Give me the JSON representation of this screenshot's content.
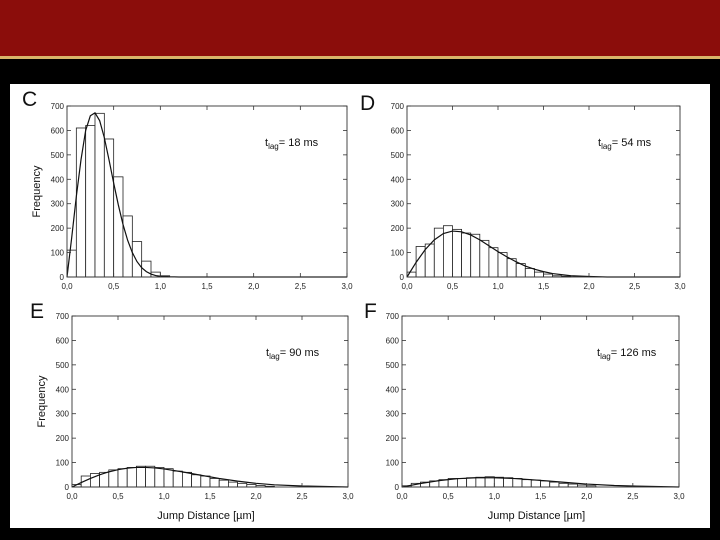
{
  "slide": {
    "header_color": "#8b0d0b",
    "rule_color": "#d9b46a",
    "background_color": "#000000"
  },
  "chart_data": [
    {
      "panel": "C",
      "type": "bar",
      "annotation": {
        "base": "t",
        "sub": "lag",
        "rest": "= 18 ms"
      },
      "xlabel": "",
      "ylabel": "Frequency",
      "xlim": [
        0,
        3.0
      ],
      "ylim": [
        0,
        700
      ],
      "xticks": [
        "0,0",
        "0,5",
        "1,0",
        "1,5",
        "2,0",
        "2,5",
        "3,0"
      ],
      "yticks": [
        "0",
        "100",
        "200",
        "300",
        "400",
        "500",
        "600",
        "700"
      ],
      "bin_width": 0.1,
      "bins": [
        0.0,
        0.1,
        0.2,
        0.3,
        0.4,
        0.5,
        0.6,
        0.7,
        0.8,
        0.9,
        1.0
      ],
      "values": [
        110,
        610,
        620,
        670,
        565,
        410,
        250,
        145,
        65,
        20,
        5
      ],
      "fit": {
        "x": [
          0.0,
          0.05,
          0.1,
          0.15,
          0.2,
          0.25,
          0.3,
          0.35,
          0.4,
          0.45,
          0.5,
          0.55,
          0.6,
          0.65,
          0.7,
          0.75,
          0.8,
          0.85,
          0.9,
          0.95,
          1.0,
          1.1,
          1.2,
          1.4,
          1.6,
          3.0
        ],
        "y": [
          0,
          160,
          330,
          480,
          600,
          660,
          672,
          640,
          570,
          480,
          385,
          295,
          215,
          150,
          100,
          63,
          38,
          22,
          12,
          6,
          3,
          1,
          0,
          0,
          0,
          0
        ]
      }
    },
    {
      "panel": "D",
      "type": "bar",
      "annotation": {
        "base": "t",
        "sub": "lag",
        "rest": "= 54 ms"
      },
      "xlabel": "",
      "ylabel": "",
      "xlim": [
        0,
        3.0
      ],
      "ylim": [
        0,
        700
      ],
      "xticks": [
        "0,0",
        "0,5",
        "1,0",
        "1,5",
        "2,0",
        "2,5",
        "3,0"
      ],
      "yticks": [
        "0",
        "100",
        "200",
        "300",
        "400",
        "500",
        "600",
        "700"
      ],
      "bin_width": 0.1,
      "bins": [
        0.0,
        0.1,
        0.2,
        0.3,
        0.4,
        0.5,
        0.6,
        0.7,
        0.8,
        0.9,
        1.0,
        1.1,
        1.2,
        1.3,
        1.4,
        1.5,
        1.6,
        1.7
      ],
      "values": [
        20,
        125,
        135,
        200,
        210,
        195,
        180,
        175,
        150,
        120,
        100,
        75,
        55,
        35,
        20,
        12,
        5,
        3
      ],
      "fit": {
        "x": [
          0.0,
          0.1,
          0.2,
          0.3,
          0.4,
          0.5,
          0.6,
          0.7,
          0.8,
          0.9,
          1.0,
          1.1,
          1.2,
          1.3,
          1.4,
          1.5,
          1.6,
          1.8,
          2.0,
          2.2,
          3.0
        ],
        "y": [
          0,
          60,
          112,
          152,
          178,
          188,
          185,
          172,
          152,
          128,
          104,
          82,
          62,
          45,
          32,
          22,
          14,
          5,
          2,
          0,
          0
        ]
      }
    },
    {
      "panel": "E",
      "type": "bar",
      "annotation": {
        "base": "t",
        "sub": "lag",
        "rest": "= 90 ms"
      },
      "xlabel": "Jump Distance [µm]",
      "ylabel": "Frequency",
      "xlim": [
        0,
        3.0
      ],
      "ylim": [
        0,
        700
      ],
      "xticks": [
        "0,0",
        "0,5",
        "1,0",
        "1,5",
        "2,0",
        "2,5",
        "3,0"
      ],
      "yticks": [
        "0",
        "100",
        "200",
        "300",
        "400",
        "500",
        "600",
        "700"
      ],
      "bin_width": 0.1,
      "bins": [
        0.0,
        0.1,
        0.2,
        0.3,
        0.4,
        0.5,
        0.6,
        0.7,
        0.8,
        0.9,
        1.0,
        1.1,
        1.2,
        1.3,
        1.4,
        1.5,
        1.6,
        1.7,
        1.8,
        1.9,
        2.0,
        2.1
      ],
      "values": [
        10,
        45,
        55,
        60,
        70,
        75,
        80,
        85,
        85,
        80,
        75,
        65,
        60,
        50,
        45,
        35,
        28,
        20,
        15,
        10,
        6,
        3
      ],
      "fit": {
        "x": [
          0.0,
          0.1,
          0.2,
          0.3,
          0.4,
          0.5,
          0.6,
          0.7,
          0.8,
          0.9,
          1.0,
          1.2,
          1.4,
          1.6,
          1.8,
          2.0,
          2.2,
          2.5,
          3.0
        ],
        "y": [
          0,
          18,
          35,
          50,
          62,
          71,
          77,
          80,
          80,
          78,
          74,
          62,
          48,
          35,
          24,
          15,
          9,
          4,
          0
        ]
      }
    },
    {
      "panel": "F",
      "type": "bar",
      "annotation": {
        "base": "t",
        "sub": "lag",
        "rest": "= 126 ms"
      },
      "xlabel": "Jump Distance [µm]",
      "ylabel": "",
      "xlim": [
        0,
        3.0
      ],
      "ylim": [
        0,
        700
      ],
      "xticks": [
        "0,0",
        "0,5",
        "1,0",
        "1,5",
        "2,0",
        "2,5",
        "3,0"
      ],
      "yticks": [
        "0",
        "100",
        "200",
        "300",
        "400",
        "500",
        "600",
        "700"
      ],
      "bin_width": 0.1,
      "bins": [
        0.0,
        0.1,
        0.2,
        0.3,
        0.4,
        0.5,
        0.6,
        0.7,
        0.8,
        0.9,
        1.0,
        1.1,
        1.2,
        1.3,
        1.4,
        1.5,
        1.6,
        1.7,
        1.8,
        1.9,
        2.0
      ],
      "values": [
        5,
        15,
        20,
        25,
        30,
        35,
        35,
        38,
        40,
        42,
        40,
        38,
        35,
        30,
        28,
        25,
        20,
        15,
        12,
        8,
        5
      ],
      "fit": {
        "x": [
          0.0,
          0.2,
          0.4,
          0.6,
          0.8,
          1.0,
          1.2,
          1.4,
          1.6,
          1.8,
          2.0,
          2.3,
          2.6,
          3.0
        ],
        "y": [
          0,
          14,
          26,
          34,
          38,
          38,
          35,
          30,
          24,
          18,
          12,
          6,
          3,
          0
        ]
      }
    }
  ]
}
